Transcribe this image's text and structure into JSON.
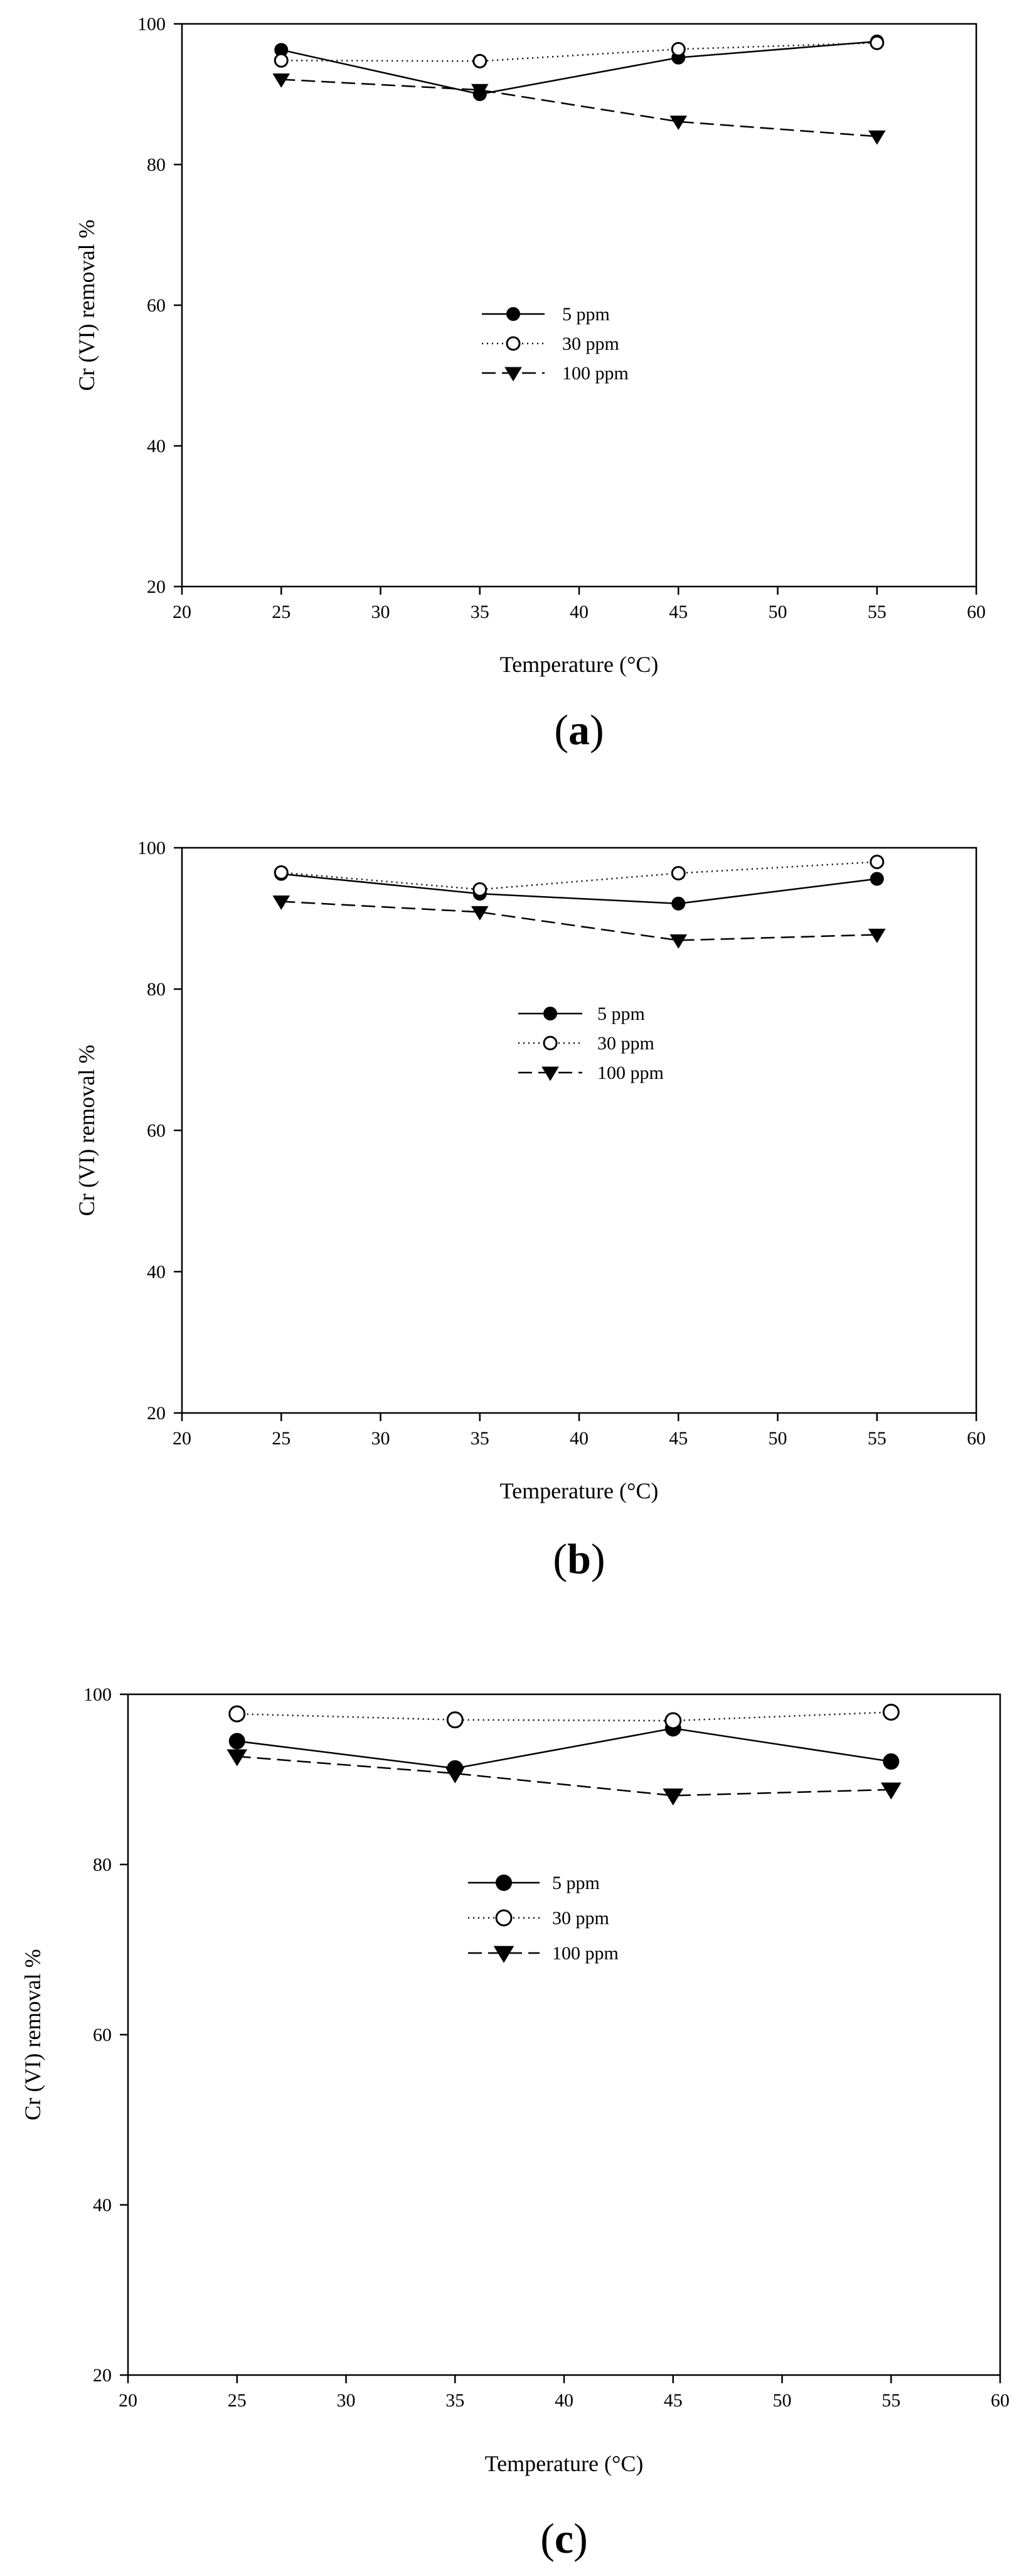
{
  "figure": {
    "panel_labels": [
      {
        "open": "(",
        "letter": "a",
        "close": ")"
      },
      {
        "open": "(",
        "letter": "b",
        "close": ")"
      },
      {
        "open": "(",
        "letter": "c",
        "close": ")"
      }
    ]
  },
  "chart_data": [
    {
      "type": "line",
      "title": "",
      "xlabel": "Temperature (°C)",
      "ylabel": "Cr (VI) removal %",
      "xlim": [
        20,
        60
      ],
      "ylim": [
        20,
        100
      ],
      "xticks": [
        20,
        25,
        30,
        35,
        40,
        45,
        50,
        55,
        60
      ],
      "yticks": [
        20,
        40,
        60,
        80,
        100
      ],
      "grid": false,
      "legend_position": "center",
      "x": [
        25,
        35,
        45,
        55
      ],
      "series": [
        {
          "name": "5 ppm",
          "marker": "filled-circle",
          "line": "solid",
          "values": [
            96.3,
            90.0,
            95.2,
            97.5
          ]
        },
        {
          "name": "30 ppm",
          "marker": "open-circle",
          "line": "dotted",
          "values": [
            94.8,
            94.7,
            96.4,
            97.3
          ]
        },
        {
          "name": "100 ppm",
          "marker": "filled-triangle-down",
          "line": "dashed",
          "values": [
            92.1,
            90.6,
            86.1,
            84.0
          ]
        }
      ]
    },
    {
      "type": "line",
      "title": "",
      "xlabel": "Temperature (°C)",
      "ylabel": "Cr (VI) removal %",
      "xlim": [
        20,
        60
      ],
      "ylim": [
        20,
        100
      ],
      "xticks": [
        20,
        25,
        30,
        35,
        40,
        45,
        50,
        55,
        60
      ],
      "yticks": [
        20,
        40,
        60,
        80,
        100
      ],
      "grid": false,
      "legend_position": "center",
      "x": [
        25,
        35,
        45,
        55
      ],
      "series": [
        {
          "name": "5 ppm",
          "marker": "filled-circle",
          "line": "solid",
          "values": [
            96.3,
            93.5,
            92.1,
            95.6
          ]
        },
        {
          "name": "30 ppm",
          "marker": "open-circle",
          "line": "dotted",
          "values": [
            96.5,
            94.1,
            96.4,
            98.0
          ]
        },
        {
          "name": "100 ppm",
          "marker": "filled-triangle-down",
          "line": "dashed",
          "values": [
            92.4,
            90.9,
            86.9,
            87.7
          ]
        }
      ]
    },
    {
      "type": "line",
      "title": "",
      "xlabel": "Temperature (°C)",
      "ylabel": "Cr (VI) removal %",
      "xlim": [
        20,
        60
      ],
      "ylim": [
        20,
        100
      ],
      "xticks": [
        20,
        25,
        30,
        35,
        40,
        45,
        50,
        55,
        60
      ],
      "yticks": [
        20,
        40,
        60,
        80,
        100
      ],
      "grid": false,
      "legend_position": "center",
      "x": [
        25,
        35,
        45,
        55
      ],
      "series": [
        {
          "name": "5 ppm",
          "marker": "filled-circle",
          "line": "solid",
          "values": [
            94.5,
            91.3,
            96.0,
            92.1
          ]
        },
        {
          "name": "30 ppm",
          "marker": "open-circle",
          "line": "dotted",
          "values": [
            97.7,
            97.0,
            96.9,
            97.9
          ]
        },
        {
          "name": "100 ppm",
          "marker": "filled-triangle-down",
          "line": "dashed",
          "values": [
            92.7,
            90.7,
            88.1,
            88.8
          ]
        }
      ]
    }
  ]
}
